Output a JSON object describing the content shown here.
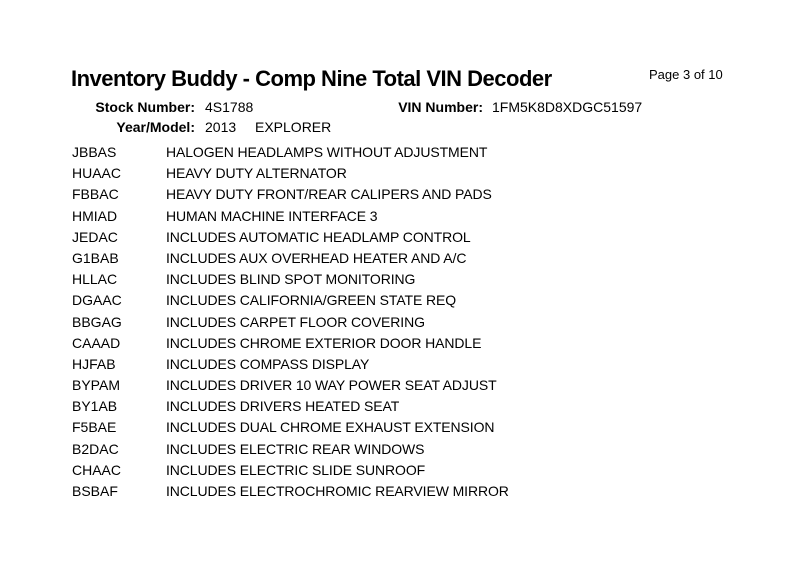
{
  "page": {
    "title": "Inventory Buddy - Comp Nine Total VIN Decoder",
    "page_indicator": "Page 3 of 10"
  },
  "header": {
    "stock_number_label": "Stock Number:",
    "stock_number": "4S1788",
    "vin_label": "VIN Number:",
    "vin": "1FM5K8D8XDGC51597",
    "year_model_label": "Year/Model:",
    "year": "2013",
    "model": "EXPLORER"
  },
  "items": [
    {
      "code": "JBBAS",
      "description": "HALOGEN HEADLAMPS WITHOUT ADJUSTMENT"
    },
    {
      "code": "HUAAC",
      "description": "HEAVY DUTY ALTERNATOR"
    },
    {
      "code": "FBBAC",
      "description": "HEAVY DUTY FRONT/REAR CALIPERS AND PADS"
    },
    {
      "code": "HMIAD",
      "description": "HUMAN MACHINE INTERFACE 3"
    },
    {
      "code": "JEDAC",
      "description": "INCLUDES AUTOMATIC HEADLAMP CONTROL"
    },
    {
      "code": "G1BAB",
      "description": "INCLUDES AUX OVERHEAD HEATER AND A/C"
    },
    {
      "code": "HLLAC",
      "description": "INCLUDES BLIND SPOT MONITORING"
    },
    {
      "code": "DGAAC",
      "description": "INCLUDES CALIFORNIA/GREEN STATE REQ"
    },
    {
      "code": "BBGAG",
      "description": "INCLUDES CARPET FLOOR COVERING"
    },
    {
      "code": "CAAAD",
      "description": "INCLUDES CHROME EXTERIOR DOOR HANDLE"
    },
    {
      "code": "HJFAB",
      "description": "INCLUDES COMPASS DISPLAY"
    },
    {
      "code": "BYPAM",
      "description": "INCLUDES DRIVER 10 WAY POWER SEAT ADJUST"
    },
    {
      "code": "BY1AB",
      "description": "INCLUDES DRIVERS HEATED SEAT"
    },
    {
      "code": "F5BAE",
      "description": "INCLUDES DUAL CHROME EXHAUST EXTENSION"
    },
    {
      "code": "B2DAC",
      "description": "INCLUDES ELECTRIC REAR WINDOWS"
    },
    {
      "code": "CHAAC",
      "description": "INCLUDES ELECTRIC SLIDE SUNROOF"
    },
    {
      "code": "BSBAF",
      "description": "INCLUDES ELECTROCHROMIC REARVIEW MIRROR"
    }
  ]
}
